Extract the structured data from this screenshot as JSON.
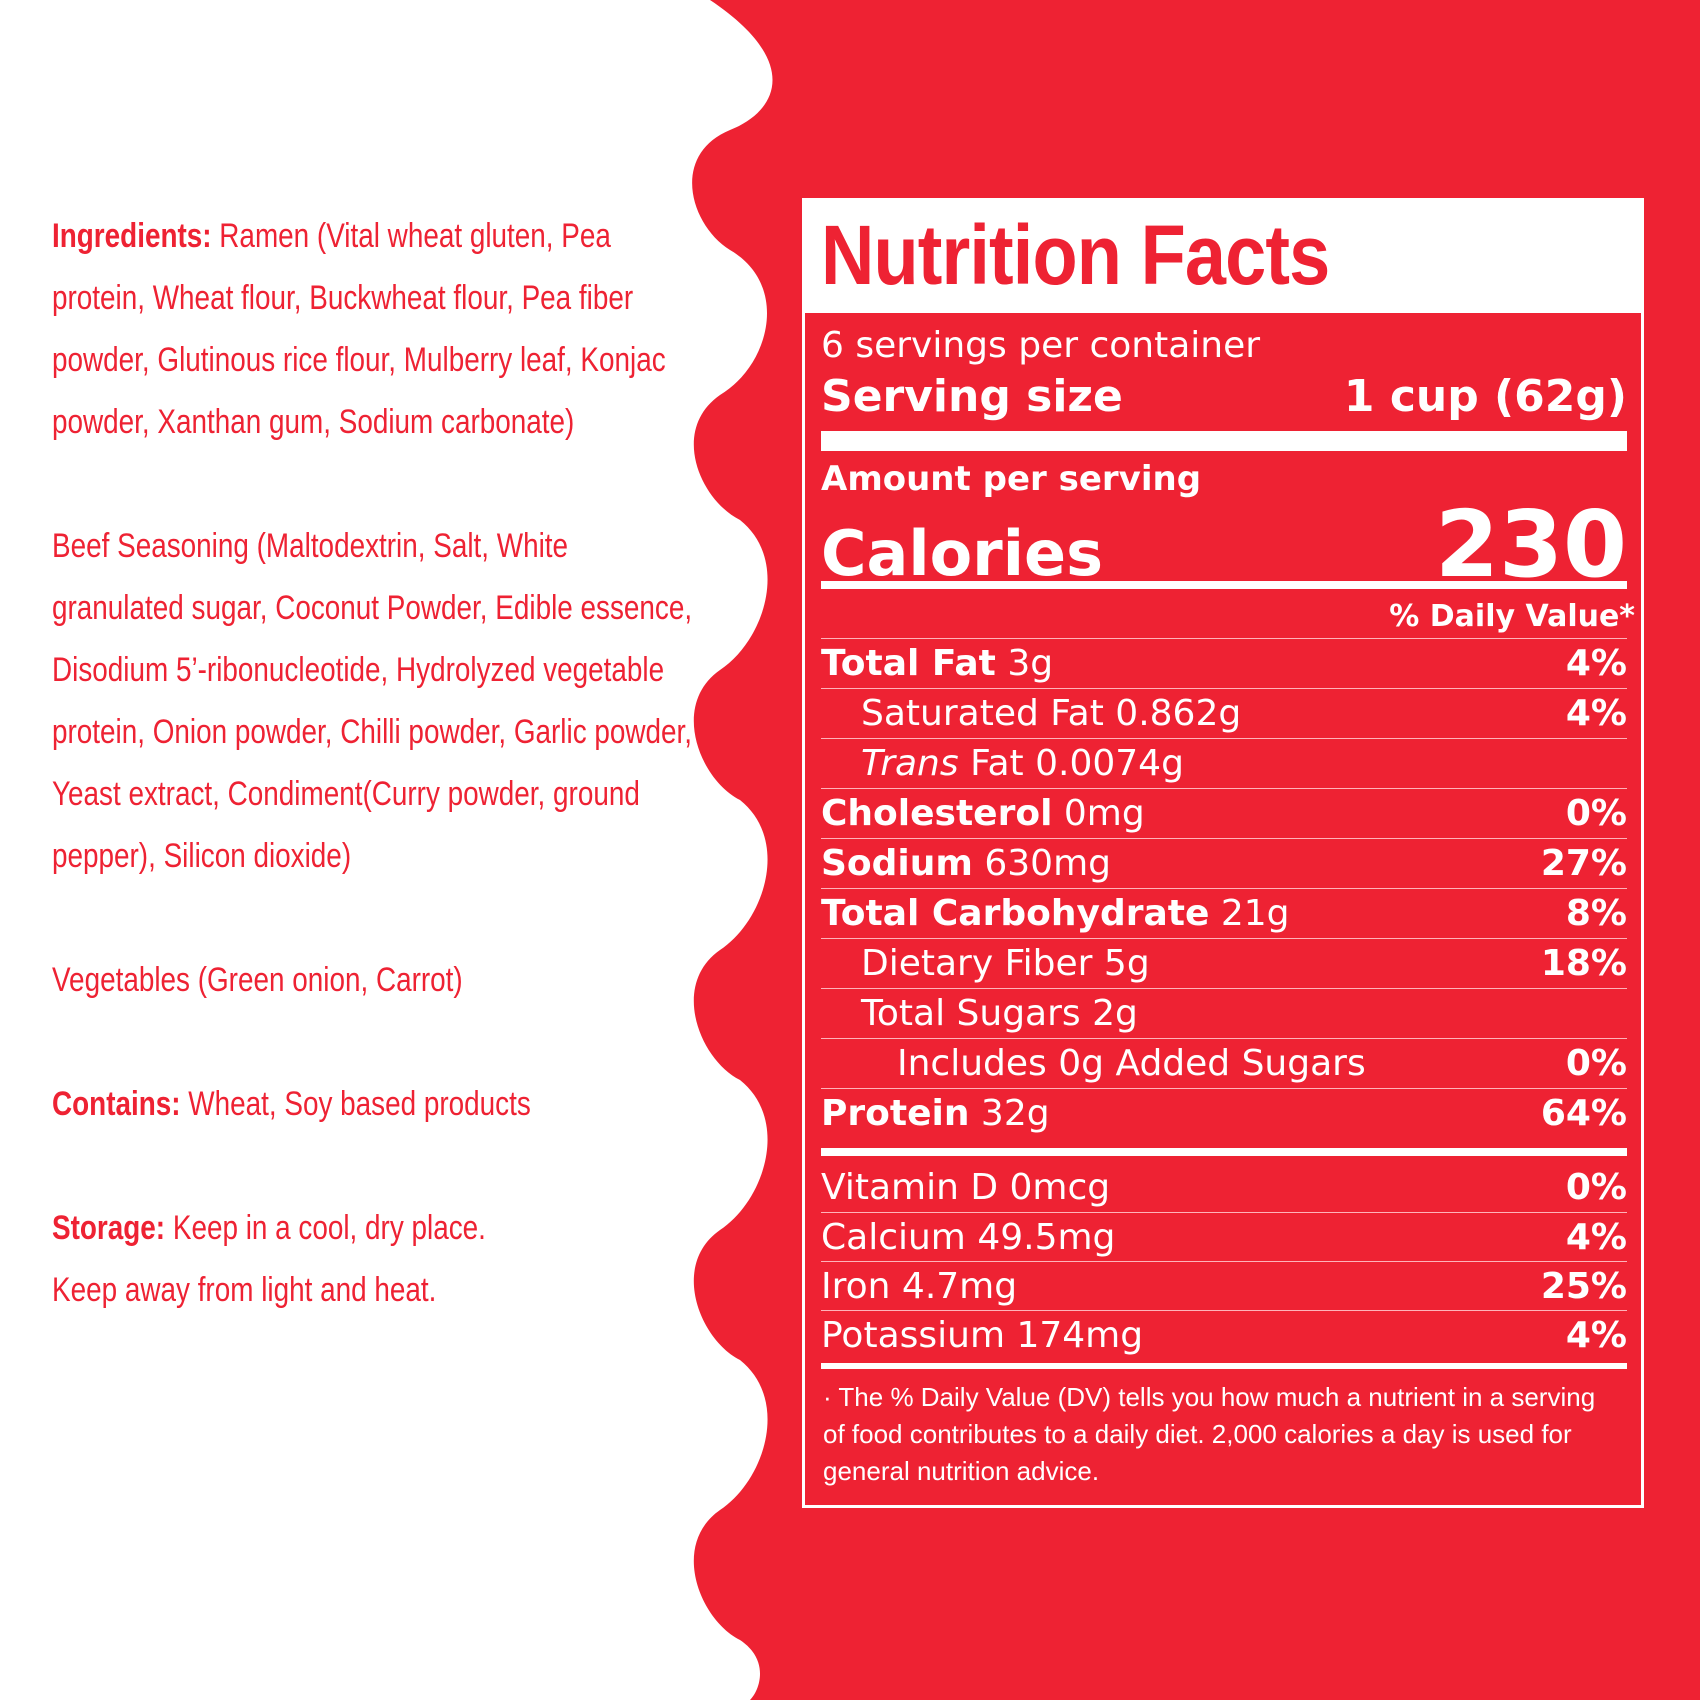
{
  "colors": {
    "brand_red": "#ee2233",
    "white": "#ffffff"
  },
  "ingredients": {
    "label": "Ingredients:",
    "text": " Ramen (Vital wheat gluten, Pea protein, Wheat flour, Buckwheat flour, Pea fiber powder, Glutinous rice flour, Mulberry leaf, Konjac powder, Xanthan gum, Sodium carbonate)"
  },
  "seasoning": "Beef Seasoning (Maltodextrin, Salt, White granulated sugar, Coconut Powder, Edible essence, Disodium 5’-ribonucleotide, Hydrolyzed vegetable protein, Onion powder, Chilli powder, Garlic powder, Yeast extract, Condiment(Curry powder, ground pepper), Silicon dioxide)",
  "vegetables": "Vegetables (Green onion, Carrot)",
  "contains": {
    "label": "Contains:",
    "text": "  Wheat, Soy based products"
  },
  "storage": {
    "label": "Storage:",
    "line1": " Keep in a cool, dry place.",
    "line2": "Keep away from light and heat."
  },
  "nutrition": {
    "title": "Nutrition Facts",
    "servings_per_container": "6 servings per container",
    "serving_size_label": "Serving size",
    "serving_size_value": "1 cup (62g)",
    "amount_per_serving": "Amount per serving",
    "calories_label": "Calories",
    "calories_value": "230",
    "dv_header": "% Daily Value*",
    "rows": [
      {
        "bold": "Total Fat",
        "amount": " 3g",
        "dv": "4%"
      },
      {
        "label": "Saturated Fat 0.862g",
        "dv": "4%"
      },
      {
        "italic": "Trans",
        "label": " Fat 0.0074g",
        "dv": ""
      },
      {
        "bold": "Cholesterol",
        "amount": " 0mg",
        "dv": "0%"
      },
      {
        "bold": "Sodium",
        "amount": " 630mg",
        "dv": "27%"
      },
      {
        "bold": "Total Carbohydrate",
        "amount": " 21g",
        "dv": "8%"
      },
      {
        "label": "Dietary Fiber 5g",
        "dv": "18%"
      },
      {
        "label": "Total Sugars 2g",
        "dv": ""
      },
      {
        "label": "Includes 0g Added Sugars",
        "dv": "0%"
      },
      {
        "bold": "Protein",
        "amount": " 32g",
        "dv": "64%"
      }
    ],
    "vitamins": [
      {
        "label": "Vitamin D 0mcg",
        "dv": "0%"
      },
      {
        "label": "Calcium 49.5mg",
        "dv": "4%"
      },
      {
        "label": "Iron 4.7mg",
        "dv": "25%"
      },
      {
        "label": "Potassium 174mg",
        "dv": "4%"
      }
    ],
    "footnote": "· The % Daily Value (DV) tells you how much a nutrient in a serving of food contributes to a daily diet. 2,000 calories a day is used for general nutrition advice."
  }
}
